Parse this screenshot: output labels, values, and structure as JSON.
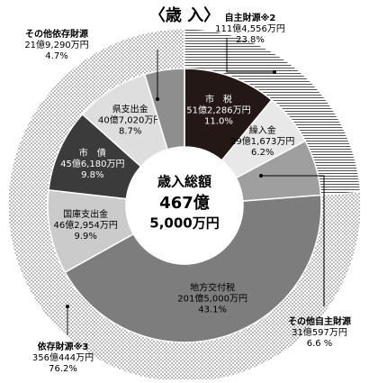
{
  "chart_data": {
    "type": "donut",
    "title": "〈歳 入〉",
    "center": [
      "歳入総額",
      "467億",
      "5,000万円"
    ],
    "inner": {
      "categories": [
        "市　税",
        "繰入金",
        "その他自主財源",
        "地方交付税",
        "国庫支出金",
        "市　債",
        "県支出金",
        "その他依存財源"
      ],
      "amounts": [
        "51億2,286万円",
        "29億1,673万円",
        "31億597万円",
        "201億5,000万円",
        "46億2,954万円",
        "45億6,180万円",
        "40億7,020万円",
        "21億9,290万円"
      ],
      "values": [
        11.0,
        6.2,
        6.6,
        43.1,
        9.9,
        9.8,
        8.7,
        4.7
      ],
      "value_labels": [
        "11.0%",
        "6.2%",
        "6.6 %",
        "43.1%",
        "9.9%",
        "9.8%",
        "8.7%",
        "4.7%"
      ],
      "colors": [
        "#231815",
        "#e8e8e8",
        "#9f9f9f",
        "#7d7d7d",
        "#cbcbcb",
        "#3b3b3b",
        "#dedede",
        "#8e8e8e"
      ]
    },
    "outer": {
      "categories": [
        "自主財源※2",
        "依存財源※3"
      ],
      "amounts": [
        "111億4,556万円",
        "356億444万円"
      ],
      "values": [
        23.8,
        76.2
      ],
      "value_labels": [
        "23.8%",
        "76.2%"
      ],
      "patterns": [
        "stripes",
        "dots"
      ]
    }
  }
}
